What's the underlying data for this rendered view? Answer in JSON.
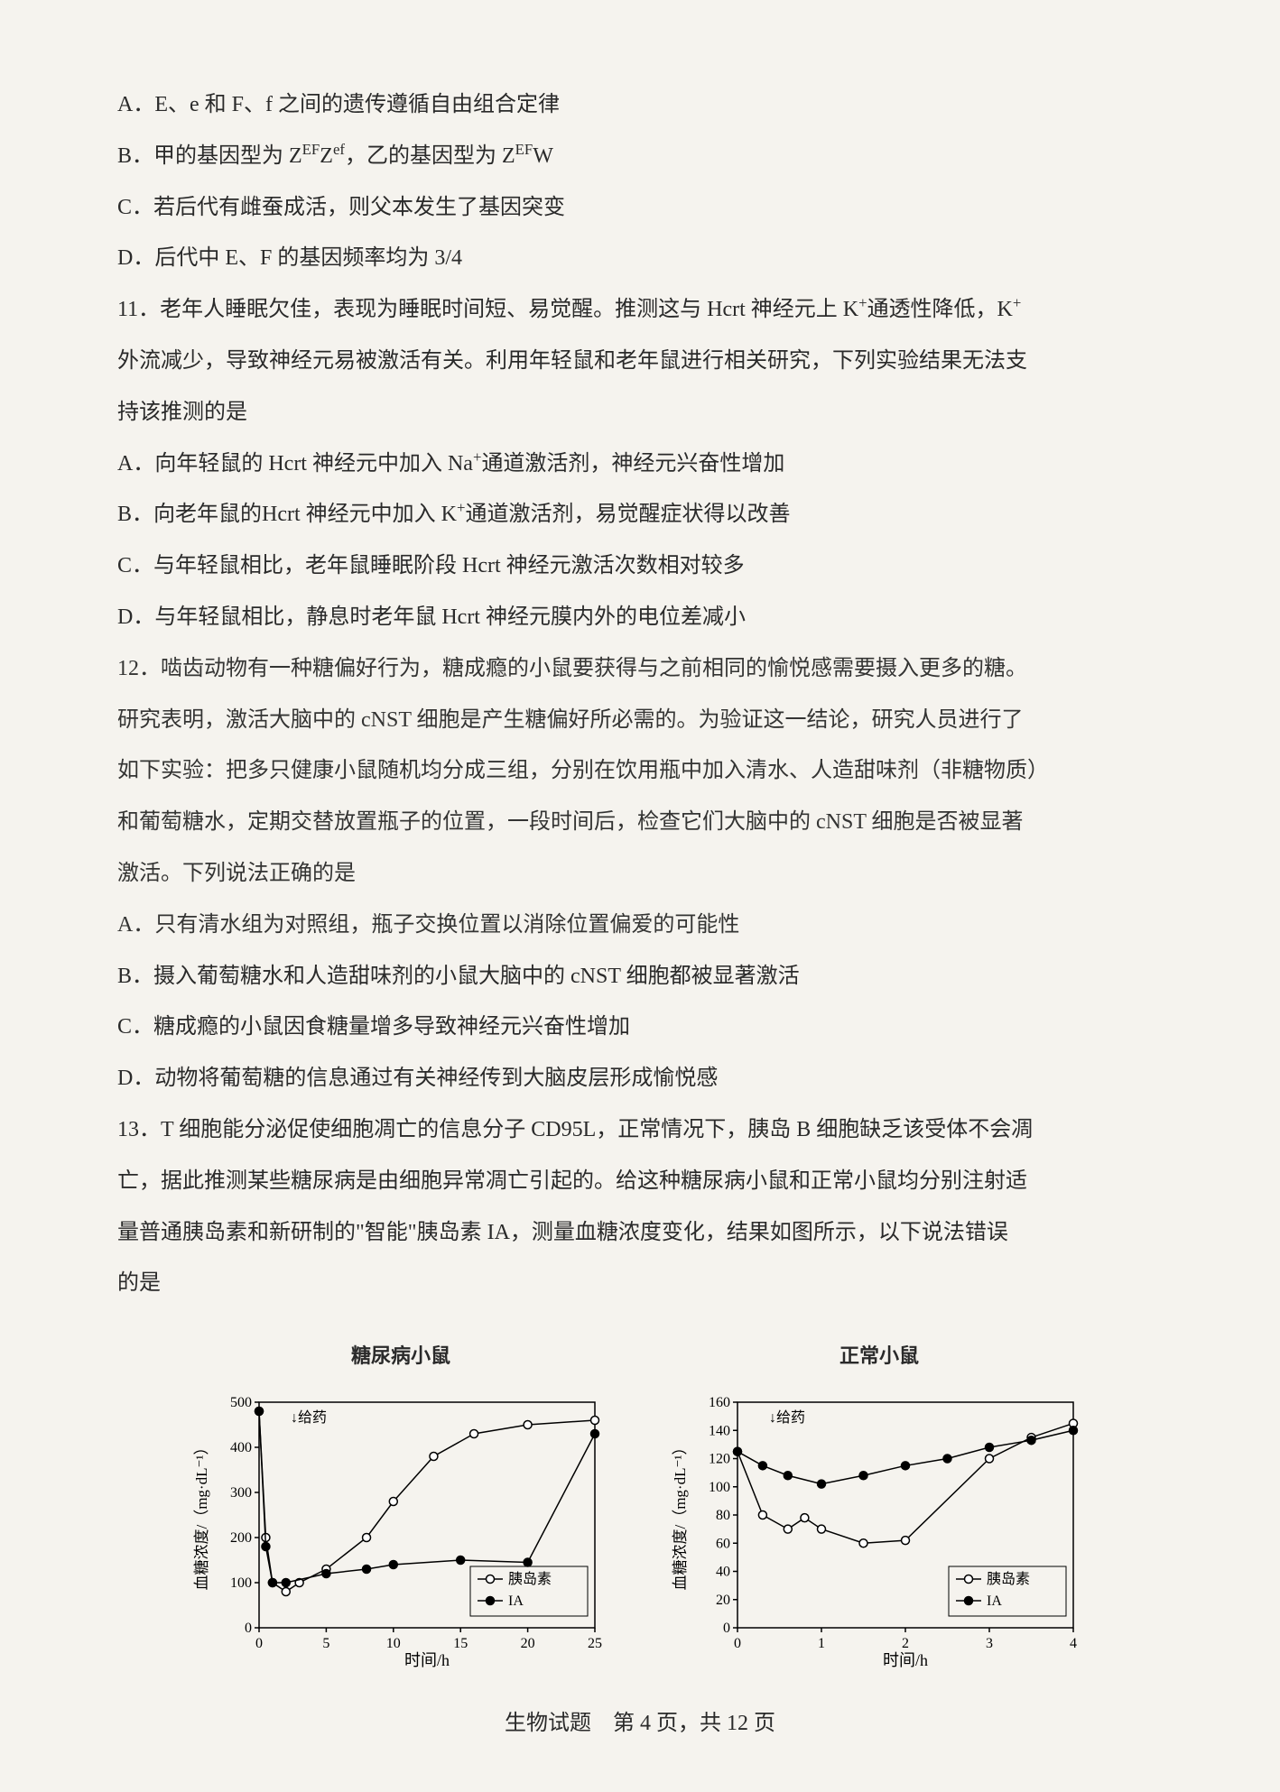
{
  "q10": {
    "optA": "A．E、e 和 F、f 之间的遗传遵循自由组合定律",
    "optB_pre": "B．甲的基因型为 Z",
    "optB_sup1": "EF",
    "optB_mid1": "Z",
    "optB_sup2": "ef",
    "optB_mid2": "，乙的基因型为 Z",
    "optB_sup3": "EF",
    "optB_end": "W",
    "optC": "C．若后代有雌蚕成活，则父本发生了基因突变",
    "optD": "D．后代中 E、F 的基因频率均为 3/4"
  },
  "q11": {
    "stem1_pre": "11．老年人睡眠欠佳，表现为睡眠时间短、易觉醒。推测这与 Hcrt 神经元上 K",
    "stem1_sup": "+",
    "stem1_mid": "通透性降低，K",
    "stem1_sup2": "+",
    "stem2": "外流减少，导致神经元易被激活有关。利用年轻鼠和老年鼠进行相关研究，下列实验结果无法支",
    "stem3": "持该推测的是",
    "optA_pre": "A．向年轻鼠的 Hcrt 神经元中加入 Na",
    "optA_sup": "+",
    "optA_end": "通道激活剂，神经元兴奋性增加",
    "optB_pre": "B．向老年鼠的Hcrt 神经元中加入 K",
    "optB_sup": "+",
    "optB_end": "通道激活剂，易觉醒症状得以改善",
    "optC": "C．与年轻鼠相比，老年鼠睡眠阶段 Hcrt 神经元激活次数相对较多",
    "optD": "D．与年轻鼠相比，静息时老年鼠 Hcrt 神经元膜内外的电位差减小"
  },
  "q12": {
    "stem1": "12．啮齿动物有一种糖偏好行为，糖成瘾的小鼠要获得与之前相同的愉悦感需要摄入更多的糖。",
    "stem2": "研究表明，激活大脑中的 cNST 细胞是产生糖偏好所必需的。为验证这一结论，研究人员进行了",
    "stem3": "如下实验：把多只健康小鼠随机均分成三组，分别在饮用瓶中加入清水、人造甜味剂（非糖物质）",
    "stem4": "和葡萄糖水，定期交替放置瓶子的位置，一段时间后，检查它们大脑中的 cNST 细胞是否被显著",
    "stem5": "激活。下列说法正确的是",
    "optA": "A．只有清水组为对照组，瓶子交换位置以消除位置偏爱的可能性",
    "optB": "B．摄入葡萄糖水和人造甜味剂的小鼠大脑中的 cNST 细胞都被显著激活",
    "optC": "C．糖成瘾的小鼠因食糖量增多导致神经元兴奋性增加",
    "optD": "D．动物将葡萄糖的信息通过有关神经传到大脑皮层形成愉悦感"
  },
  "q13": {
    "stem1": "13．T 细胞能分泌促使细胞凋亡的信息分子 CD95L，正常情况下，胰岛 B 细胞缺乏该受体不会凋",
    "stem2": "亡，据此推测某些糖尿病是由细胞异常凋亡引起的。给这种糖尿病小鼠和正常小鼠均分别注射适",
    "stem3": "量普通胰岛素和新研制的\"智能\"胰岛素 IA，测量血糖浓度变化，结果如图所示，以下说法错误",
    "stem4": "的是"
  },
  "chart1": {
    "title": "糖尿病小鼠",
    "ylabel": "血糖浓度/（mg·dL⁻¹）",
    "xlabel": "时间/h",
    "ylim": [
      0,
      500
    ],
    "ytick_step": 100,
    "xlim": [
      0,
      25
    ],
    "xtick_step": 5,
    "annotation": "给药",
    "legend": [
      "胰岛素",
      "IA"
    ],
    "series_insulin": {
      "color": "#ffffff",
      "stroke": "#000000",
      "marker": "circle-open",
      "x": [
        0,
        0.5,
        1,
        2,
        3,
        5,
        8,
        10,
        13,
        16,
        20,
        25
      ],
      "y": [
        480,
        200,
        100,
        80,
        100,
        130,
        200,
        280,
        380,
        430,
        450,
        460
      ]
    },
    "series_ia": {
      "color": "#000000",
      "stroke": "#000000",
      "marker": "circle",
      "x": [
        0,
        0.5,
        1,
        2,
        5,
        8,
        10,
        15,
        20,
        25
      ],
      "y": [
        480,
        180,
        100,
        100,
        120,
        130,
        140,
        150,
        145,
        430
      ]
    },
    "background": "#f5f3ee",
    "grid_color": "none"
  },
  "chart2": {
    "title": "正常小鼠",
    "ylabel": "血糖浓度/（mg·dL⁻¹）",
    "xlabel": "时间/h",
    "ylim": [
      0,
      160
    ],
    "ytick_step": 20,
    "xlim": [
      0,
      4
    ],
    "xtick_step": 1,
    "annotation": "给药",
    "legend": [
      "胰岛素",
      "IA"
    ],
    "series_insulin": {
      "color": "#ffffff",
      "stroke": "#000000",
      "marker": "circle-open",
      "x": [
        0,
        0.3,
        0.6,
        0.8,
        1.0,
        1.5,
        2,
        3,
        3.5,
        4
      ],
      "y": [
        125,
        80,
        70,
        78,
        70,
        60,
        62,
        120,
        135,
        145
      ]
    },
    "series_ia": {
      "color": "#000000",
      "stroke": "#000000",
      "marker": "circle",
      "x": [
        0,
        0.3,
        0.6,
        1.0,
        1.5,
        2,
        2.5,
        3,
        3.5,
        4
      ],
      "y": [
        125,
        115,
        108,
        102,
        108,
        115,
        120,
        128,
        133,
        140
      ]
    },
    "background": "#f5f3ee",
    "grid_color": "none"
  },
  "footer": "生物试题　第 4 页，共 12 页"
}
